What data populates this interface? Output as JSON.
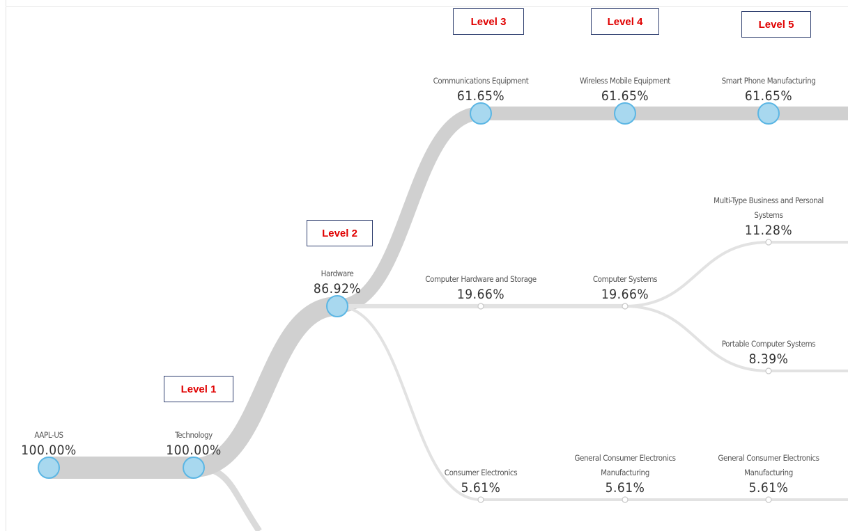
{
  "levels": [
    "Level 1",
    "Level 2",
    "Level 3",
    "Level 4",
    "Level 5"
  ],
  "nodes": [
    {
      "label": "AAPL-US",
      "value": 100.0,
      "value_label": "100.00%"
    },
    {
      "label": "Technology",
      "value": 100.0,
      "value_label": "100.00%",
      "parent": 0
    },
    {
      "label": "Hardware",
      "value": 86.92,
      "value_label": "86.92%",
      "parent": 1
    },
    {
      "label": "Communications Equipment",
      "value": 61.65,
      "value_label": "61.65%",
      "parent": 2
    },
    {
      "label": "Wireless Mobile Equipment",
      "value": 61.65,
      "value_label": "61.65%",
      "parent": 3
    },
    {
      "label": "Smart Phone Manufacturing",
      "value": 61.65,
      "value_label": "61.65%",
      "parent": 4
    },
    {
      "label": "Computer Hardware and Storage",
      "value": 19.66,
      "value_label": "19.66%",
      "parent": 2
    },
    {
      "label": "Computer Systems",
      "value": 19.66,
      "value_label": "19.66%",
      "parent": 6
    },
    {
      "label": "Multi-Type Business and Personal Systems",
      "value": 11.28,
      "value_label": "11.28%",
      "parent": 7
    },
    {
      "label": "Portable Computer Systems",
      "value": 8.39,
      "value_label": "8.39%",
      "parent": 7
    },
    {
      "label": "Consumer Electronics",
      "value": 5.61,
      "value_label": "5.61%",
      "parent": 2
    },
    {
      "label": "General Consumer Electronics Manufacturing",
      "value": 5.61,
      "value_label": "5.61%",
      "parent": 10
    },
    {
      "label": "General Consumer Electronics Manufacturing",
      "value": 5.61,
      "value_label": "5.61%",
      "parent": 11
    }
  ]
}
